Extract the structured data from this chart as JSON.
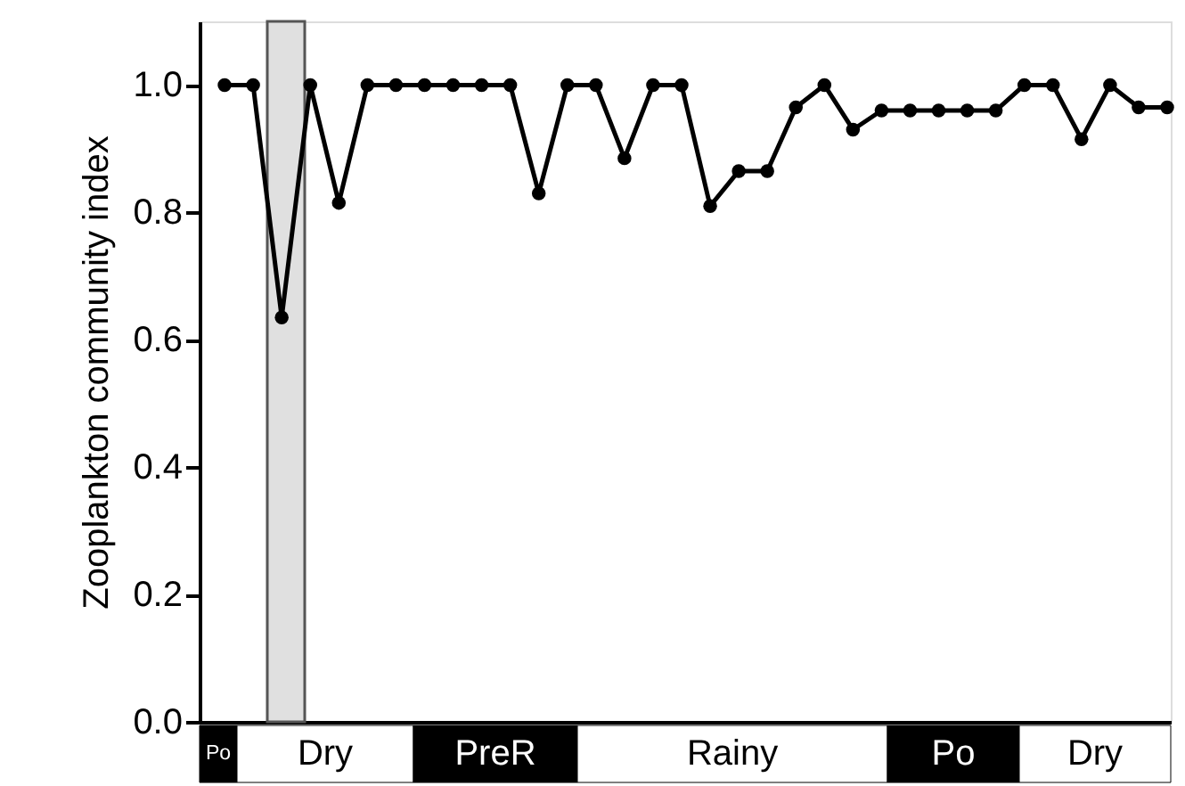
{
  "chart_data": {
    "type": "line",
    "ylabel": "Zooplankton community index",
    "categories": [
      null,
      null,
      null,
      null,
      null,
      null,
      null,
      null,
      null,
      null,
      null,
      null,
      null,
      null,
      null,
      null,
      null,
      null,
      null,
      null,
      null,
      null,
      null,
      null,
      null,
      null,
      null,
      null,
      null,
      null,
      null,
      null,
      null,
      null
    ],
    "series": [
      {
        "color": "#000000",
        "values": [
          1.0,
          1.0,
          0.635,
          1.0,
          0.815,
          1.0,
          1.0,
          1.0,
          1.0,
          1.0,
          1.0,
          0.83,
          1.0,
          1.0,
          0.885,
          1.0,
          1.0,
          0.81,
          0.865,
          0.865,
          0.965,
          1.0,
          0.93,
          0.96,
          0.96,
          0.96,
          0.96,
          0.96,
          1.0,
          1.0,
          0.915,
          1.0,
          0.965,
          0.965
        ]
      }
    ],
    "ylim": [
      0.0,
      1.1
    ],
    "yticks": [
      {
        "value": 0,
        "label": "0.0"
      },
      {
        "value": 0.2,
        "label": "0.2"
      },
      {
        "value": 0.4,
        "label": "0.4"
      },
      {
        "value": 0.6,
        "label": "0.6"
      },
      {
        "value": 0.8,
        "label": "0.8"
      },
      {
        "value": 1.0,
        "label": "1.0"
      }
    ],
    "tick_labels": "y",
    "grid": false,
    "marker": "circle",
    "line_style": "solid",
    "annotations": [
      "Po",
      "Dry",
      "PreR",
      "Rainy",
      "Po",
      "Dry"
    ]
  }
}
